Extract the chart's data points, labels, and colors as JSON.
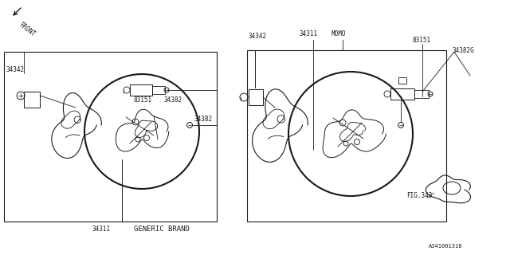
{
  "bg_color": "#ffffff",
  "line_color": "#1a1a1a",
  "text_color": "#1a1a1a",
  "fig_width": 6.4,
  "fig_height": 3.2,
  "dpi": 100,
  "labels": {
    "front_arrow": "FRONT",
    "generic_brand": "GENERIC BRAND",
    "momo": "MOMO",
    "part_34311_left": "34311",
    "part_34342_left": "34342",
    "part_34382_upper": "34382",
    "part_34382_lower": "34382",
    "part_83151_left": "83151",
    "part_34311_right": "34311",
    "part_34342_right": "34342",
    "part_83151_right": "83151",
    "part_34382G": "34382G",
    "part_fig343": "FIG.343",
    "ref_code": "A341001318"
  }
}
